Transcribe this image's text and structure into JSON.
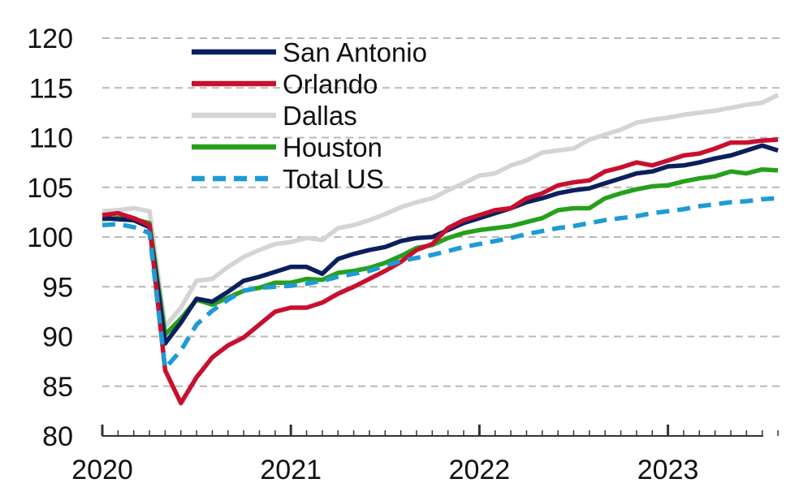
{
  "chart_data": {
    "type": "line",
    "title": "",
    "xlabel": "",
    "ylabel": "",
    "ylim": [
      80,
      120
    ],
    "yticks": [
      "80",
      "85",
      "90",
      "95",
      "100",
      "105",
      "110",
      "115",
      "120"
    ],
    "xticks": [
      "2020",
      "2021",
      "2022",
      "2023"
    ],
    "grid": true,
    "legend_position": "top-left",
    "x_start": 2020.0,
    "x_step_months": 1,
    "series": [
      {
        "name": "San Antonio",
        "color": "#0b1f5c",
        "dash": "solid",
        "values": [
          101.9,
          101.8,
          101.7,
          101.0,
          89.3,
          91.4,
          93.8,
          93.5,
          94.5,
          95.6,
          96.0,
          96.5,
          97.0,
          97.0,
          96.3,
          97.8,
          98.3,
          98.7,
          99.0,
          99.6,
          99.9,
          100.0,
          100.7,
          101.4,
          101.9,
          102.4,
          102.9,
          103.5,
          103.9,
          104.4,
          104.7,
          104.9,
          105.4,
          105.9,
          106.4,
          106.6,
          107.1,
          107.2,
          107.5,
          107.9,
          108.2,
          108.7,
          109.2,
          108.7
        ]
      },
      {
        "name": "Orlando",
        "color": "#c8102e",
        "dash": "solid",
        "values": [
          102.2,
          102.4,
          101.9,
          101.2,
          86.6,
          83.3,
          85.9,
          87.9,
          89.1,
          89.9,
          91.2,
          92.5,
          92.9,
          92.9,
          93.4,
          94.3,
          95.0,
          95.8,
          96.6,
          97.5,
          98.7,
          99.3,
          100.9,
          101.7,
          102.2,
          102.7,
          102.9,
          103.9,
          104.4,
          105.2,
          105.5,
          105.7,
          106.6,
          107.0,
          107.5,
          107.2,
          107.7,
          108.2,
          108.4,
          108.9,
          109.5,
          109.5,
          109.7,
          109.8
        ]
      },
      {
        "name": "Dallas",
        "color": "#d4d4d4",
        "dash": "solid",
        "values": [
          102.6,
          102.7,
          102.9,
          102.6,
          91.0,
          92.9,
          95.6,
          95.8,
          97.0,
          98.0,
          98.7,
          99.3,
          99.5,
          99.9,
          99.7,
          100.9,
          101.2,
          101.7,
          102.3,
          103.0,
          103.5,
          103.9,
          104.7,
          105.4,
          106.2,
          106.4,
          107.2,
          107.7,
          108.5,
          108.7,
          108.9,
          109.8,
          110.3,
          110.8,
          111.5,
          111.8,
          112.0,
          112.3,
          112.5,
          112.7,
          113.0,
          113.3,
          113.5,
          114.3
        ]
      },
      {
        "name": "Houston",
        "color": "#26a01c",
        "dash": "solid",
        "values": [
          101.8,
          101.9,
          101.8,
          101.4,
          90.2,
          91.8,
          93.7,
          93.2,
          93.9,
          94.6,
          94.9,
          95.4,
          95.4,
          95.8,
          95.7,
          96.4,
          96.6,
          96.9,
          97.4,
          98.1,
          98.9,
          99.2,
          99.9,
          100.4,
          100.7,
          100.9,
          101.1,
          101.5,
          101.9,
          102.7,
          102.9,
          102.9,
          103.9,
          104.4,
          104.8,
          105.1,
          105.2,
          105.6,
          105.9,
          106.1,
          106.6,
          106.4,
          106.8,
          106.7
        ]
      },
      {
        "name": "Total US",
        "color": "#1e9ad6",
        "dash": "dashed",
        "values": [
          101.2,
          101.3,
          101.0,
          100.4,
          86.8,
          88.6,
          91.2,
          92.6,
          93.7,
          94.6,
          94.9,
          95.0,
          95.1,
          95.3,
          95.6,
          96.0,
          96.3,
          96.6,
          97.1,
          97.6,
          97.9,
          98.2,
          98.6,
          99.0,
          99.3,
          99.6,
          99.9,
          100.3,
          100.6,
          100.9,
          101.1,
          101.4,
          101.7,
          101.9,
          102.1,
          102.4,
          102.6,
          102.8,
          103.1,
          103.3,
          103.5,
          103.6,
          103.8,
          103.9
        ]
      }
    ]
  }
}
